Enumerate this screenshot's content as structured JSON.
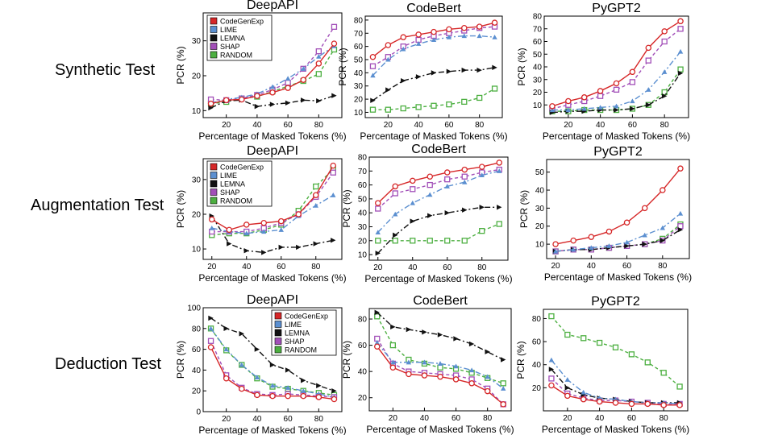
{
  "row_labels": [
    "Synthetic Test",
    "Augmentation Test",
    "Deduction Test"
  ],
  "styles": {
    "CodeGenExp": {
      "color": "#d62728",
      "marker": "circle",
      "dash": ""
    },
    "LIME": {
      "color": "#5b8fd0",
      "marker": "tri",
      "dash": "7,3,2,3"
    },
    "LEMNA": {
      "color": "#111111",
      "marker": "tri_r",
      "dash": "7,3,2,3"
    },
    "SHAP": {
      "color": "#a24fb8",
      "marker": "square",
      "dash": "4,3"
    },
    "RANDOM": {
      "color": "#4caf40",
      "marker": "square",
      "dash": "4,3"
    }
  },
  "chart_data": [
    {
      "type": "line",
      "title": "DeepAPI",
      "xlabel": "Percentage of Masked Tokens (%)",
      "ylabel": "PCR (%)",
      "xlim": [
        5,
        95
      ],
      "ylim": [
        8,
        38
      ],
      "xticks": [
        20,
        40,
        60,
        80
      ],
      "yticks": [
        10,
        20,
        30
      ],
      "legend": "top-left",
      "x": [
        10,
        20,
        30,
        40,
        50,
        60,
        70,
        80,
        90
      ],
      "series": [
        {
          "name": "CodeGenExp",
          "values": [
            12.0,
            13.0,
            13.2,
            14.2,
            15.2,
            16.5,
            18.8,
            23.5,
            29.2
          ]
        },
        {
          "name": "LIME",
          "values": [
            12.2,
            13.2,
            13.8,
            14.8,
            16.8,
            19.2,
            22.0,
            25.5,
            28.5
          ]
        },
        {
          "name": "LEMNA",
          "values": [
            10.8,
            12.8,
            13.0,
            11.2,
            11.8,
            12.2,
            13.0,
            12.8,
            14.3
          ]
        },
        {
          "name": "SHAP",
          "values": [
            13.2,
            13.0,
            13.5,
            14.5,
            16.0,
            18.0,
            22.0,
            27.0,
            34.0
          ]
        },
        {
          "name": "RANDOM",
          "values": [
            12.0,
            12.5,
            13.5,
            14.0,
            15.5,
            17.0,
            18.5,
            20.5,
            27.5
          ]
        }
      ]
    },
    {
      "type": "line",
      "title": "CodeBert",
      "xlabel": "Percentage of Masked Tokens (%)",
      "ylabel": "PCR (%)",
      "xlim": [
        5,
        95
      ],
      "ylim": [
        6,
        83
      ],
      "xticks": [
        20,
        40,
        60,
        80
      ],
      "yticks": [
        10,
        20,
        30,
        40,
        50,
        60,
        70,
        80
      ],
      "legend": "",
      "x": [
        10,
        20,
        30,
        40,
        50,
        60,
        70,
        80,
        90
      ],
      "series": [
        {
          "name": "CodeGenExp",
          "values": [
            52,
            61,
            67,
            69,
            71,
            73,
            74,
            75,
            78
          ]
        },
        {
          "name": "LIME",
          "values": [
            38,
            50,
            58,
            62,
            65,
            67,
            68,
            68,
            67
          ]
        },
        {
          "name": "LEMNA",
          "values": [
            19,
            27,
            34,
            37,
            40,
            41,
            42,
            42,
            44
          ]
        },
        {
          "name": "SHAP",
          "values": [
            45,
            52,
            60,
            65,
            68,
            70,
            72,
            74,
            75
          ]
        },
        {
          "name": "RANDOM",
          "values": [
            12,
            12,
            13,
            14,
            15,
            16,
            18,
            21,
            28
          ]
        }
      ]
    },
    {
      "type": "line",
      "title": "PyGPT2",
      "xlabel": "Percentage of Masked Tokens (%)",
      "ylabel": "PCR (%)",
      "xlim": [
        5,
        95
      ],
      "ylim": [
        0,
        80
      ],
      "xticks": [
        20,
        40,
        60,
        80
      ],
      "yticks": [
        10,
        20,
        30,
        40,
        50,
        60,
        70,
        80
      ],
      "legend": "",
      "x": [
        10,
        20,
        30,
        40,
        50,
        60,
        70,
        80,
        90
      ],
      "series": [
        {
          "name": "CodeGenExp",
          "values": [
            9,
            13,
            16,
            21,
            27,
            36,
            55,
            68,
            76
          ]
        },
        {
          "name": "LIME",
          "values": [
            6,
            6,
            7,
            8,
            9,
            13,
            22,
            36,
            52
          ]
        },
        {
          "name": "LEMNA",
          "values": [
            4,
            5,
            5,
            6,
            6,
            7,
            10,
            17,
            35
          ]
        },
        {
          "name": "SHAP",
          "values": [
            7,
            10,
            13,
            17,
            22,
            28,
            45,
            60,
            70
          ]
        },
        {
          "name": "RANDOM",
          "values": [
            5,
            5,
            6,
            6,
            6,
            7,
            10,
            20,
            38
          ]
        }
      ]
    },
    {
      "type": "line",
      "title": "DeepAPI",
      "xlabel": "Percentage of Masked Tokens (%)",
      "ylabel": "PCR (%)",
      "xlim": [
        15,
        95
      ],
      "ylim": [
        7,
        36
      ],
      "xticks": [
        20,
        40,
        60,
        80
      ],
      "yticks": [
        10,
        20,
        30
      ],
      "legend": "top-left",
      "x": [
        20,
        30,
        40,
        50,
        60,
        70,
        80,
        90
      ],
      "series": [
        {
          "name": "CodeGenExp",
          "values": [
            18.5,
            15.5,
            17.0,
            17.5,
            18.0,
            20.0,
            25.5,
            34.0
          ]
        },
        {
          "name": "LIME",
          "values": [
            16.0,
            15.0,
            14.5,
            15.0,
            15.5,
            19.5,
            22.5,
            25.5
          ]
        },
        {
          "name": "LEMNA",
          "values": [
            19.5,
            11.5,
            9.5,
            9.0,
            10.5,
            10.5,
            11.5,
            12.5
          ]
        },
        {
          "name": "SHAP",
          "values": [
            15.0,
            15.0,
            15.0,
            16.0,
            17.5,
            20.0,
            25.0,
            32.0
          ]
        },
        {
          "name": "RANDOM",
          "values": [
            14.0,
            14.5,
            14.5,
            15.5,
            17.0,
            21.0,
            28.0,
            33.0
          ]
        }
      ]
    },
    {
      "type": "line",
      "title": "CodeBert",
      "xlabel": "Percentage of Masked Tokens (%)",
      "ylabel": "PCR (%)",
      "xlim": [
        15,
        95
      ],
      "ylim": [
        6,
        80
      ],
      "xticks": [
        20,
        40,
        60,
        80
      ],
      "yticks": [
        10,
        20,
        30,
        40,
        50,
        60,
        70,
        80
      ],
      "legend": "",
      "x": [
        20,
        30,
        40,
        50,
        60,
        70,
        80,
        90
      ],
      "series": [
        {
          "name": "CodeGenExp",
          "values": [
            47,
            59,
            63,
            66,
            69,
            71,
            73,
            76
          ]
        },
        {
          "name": "LIME",
          "values": [
            26,
            39,
            47,
            53,
            59,
            62,
            67,
            70
          ]
        },
        {
          "name": "LEMNA",
          "values": [
            11,
            24,
            34,
            38,
            40,
            42,
            44,
            44
          ]
        },
        {
          "name": "SHAP",
          "values": [
            43,
            54,
            57,
            60,
            64,
            66,
            69,
            71
          ]
        },
        {
          "name": "RANDOM",
          "values": [
            20,
            20,
            20,
            20,
            20,
            20,
            27,
            32
          ]
        }
      ]
    },
    {
      "type": "line",
      "title": "PyGPT2",
      "xlabel": "Percentage of Masked Tokens (%)",
      "ylabel": "PCR (%)",
      "xlim": [
        15,
        95
      ],
      "ylim": [
        2,
        57
      ],
      "xticks": [
        20,
        40,
        60,
        80
      ],
      "yticks": [
        10,
        20,
        30,
        40,
        50
      ],
      "legend": "",
      "x": [
        20,
        30,
        40,
        50,
        60,
        70,
        80,
        90
      ],
      "series": [
        {
          "name": "CodeGenExp",
          "values": [
            10,
            12,
            14,
            17,
            22,
            30,
            40,
            52
          ]
        },
        {
          "name": "LIME",
          "values": [
            6,
            7,
            8,
            9,
            11,
            15,
            19,
            27
          ]
        },
        {
          "name": "LEMNA",
          "values": [
            6,
            7,
            7,
            8,
            9,
            10,
            12,
            18
          ]
        },
        {
          "name": "SHAP",
          "values": [
            6,
            7,
            7,
            8,
            9,
            10,
            12,
            20
          ]
        },
        {
          "name": "RANDOM",
          "values": [
            6,
            7,
            7,
            8,
            9,
            10,
            13,
            21
          ]
        }
      ]
    },
    {
      "type": "line",
      "title": "DeepAPI",
      "xlabel": "Percentage of Masked Tokens (%)",
      "ylabel": "PCR (%)",
      "xlim": [
        5,
        95
      ],
      "ylim": [
        0,
        100
      ],
      "xticks": [
        20,
        40,
        60,
        80
      ],
      "yticks": [
        0,
        20,
        40,
        60,
        80,
        100
      ],
      "legend": "top-right",
      "x": [
        10,
        20,
        30,
        40,
        50,
        60,
        70,
        80,
        90
      ],
      "series": [
        {
          "name": "CodeGenExp",
          "values": [
            62,
            32,
            22,
            16,
            15,
            15,
            15,
            14,
            12
          ]
        },
        {
          "name": "LIME",
          "values": [
            80,
            60,
            45,
            33,
            25,
            23,
            20,
            17,
            14
          ]
        },
        {
          "name": "LEMNA",
          "values": [
            90,
            80,
            75,
            60,
            45,
            40,
            30,
            25,
            20
          ]
        },
        {
          "name": "SHAP",
          "values": [
            68,
            35,
            23,
            17,
            16,
            17,
            16,
            15,
            14
          ]
        },
        {
          "name": "RANDOM",
          "values": [
            80,
            59,
            45,
            32,
            24,
            22,
            20,
            18,
            16
          ]
        }
      ]
    },
    {
      "type": "line",
      "title": "CodeBert",
      "xlabel": "Percentage of Masked Tokens (%)",
      "ylabel": "PCR (%)",
      "xlim": [
        5,
        95
      ],
      "ylim": [
        10,
        88
      ],
      "xticks": [
        20,
        40,
        60,
        80
      ],
      "yticks": [
        20,
        40,
        60,
        80
      ],
      "legend": "",
      "x": [
        10,
        20,
        30,
        40,
        50,
        60,
        70,
        80,
        90
      ],
      "series": [
        {
          "name": "CodeGenExp",
          "values": [
            59,
            43,
            38,
            37,
            36,
            34,
            31,
            25,
            15
          ]
        },
        {
          "name": "LIME",
          "values": [
            62,
            47,
            47,
            47,
            46,
            44,
            41,
            36,
            27
          ]
        },
        {
          "name": "LEMNA",
          "values": [
            85,
            74,
            72,
            70,
            68,
            65,
            61,
            55,
            49
          ]
        },
        {
          "name": "SHAP",
          "values": [
            65,
            46,
            40,
            39,
            38,
            37,
            34,
            27,
            15
          ]
        },
        {
          "name": "RANDOM",
          "values": [
            82,
            60,
            49,
            46,
            43,
            42,
            39,
            35,
            31
          ]
        }
      ]
    },
    {
      "type": "line",
      "title": "PyGPT2",
      "xlabel": "Percentage of Masked Tokens (%)",
      "ylabel": "PCR (%)",
      "xlim": [
        5,
        95
      ],
      "ylim": [
        0,
        88
      ],
      "xticks": [
        20,
        40,
        60,
        80
      ],
      "yticks": [
        20,
        40,
        60,
        80
      ],
      "legend": "",
      "x": [
        10,
        20,
        30,
        40,
        50,
        60,
        70,
        80,
        90
      ],
      "series": [
        {
          "name": "CodeGenExp",
          "values": [
            22,
            13,
            10,
            8,
            7,
            6,
            6,
            5,
            5
          ]
        },
        {
          "name": "LIME",
          "values": [
            44,
            27,
            16,
            11,
            10,
            8,
            7,
            7,
            6
          ]
        },
        {
          "name": "LEMNA",
          "values": [
            36,
            20,
            14,
            11,
            10,
            8,
            7,
            7,
            7
          ]
        },
        {
          "name": "SHAP",
          "values": [
            28,
            15,
            11,
            9,
            9,
            8,
            7,
            6,
            6
          ]
        },
        {
          "name": "RANDOM",
          "values": [
            82,
            66,
            63,
            59,
            55,
            49,
            42,
            33,
            21
          ]
        }
      ]
    }
  ]
}
